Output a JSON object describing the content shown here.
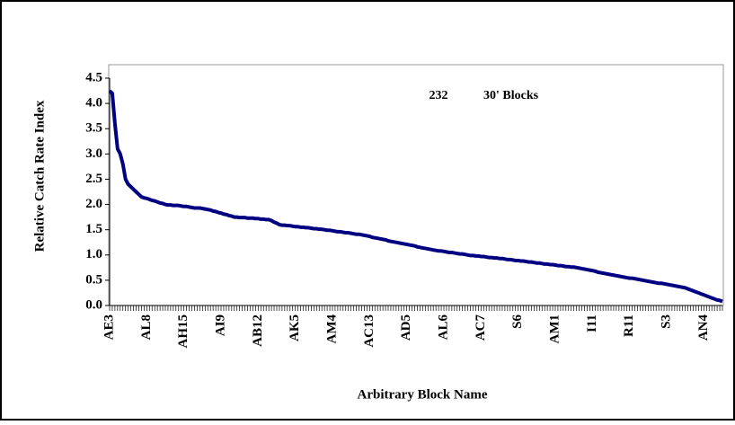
{
  "chart_data": {
    "type": "line",
    "x_label": "Arbitrary Block Name",
    "y_label": "Relative Catch Rate Index",
    "annotations": [
      "232",
      "30' Blocks"
    ],
    "color": "#000080",
    "ylim": [
      0,
      4.5
    ],
    "yticks": [
      {
        "value": 0,
        "label": "0.0"
      },
      0.5,
      {
        "value": 1,
        "label": "1.0"
      },
      1.5,
      {
        "value": 2,
        "label": "2.0"
      },
      2.5,
      {
        "value": 3,
        "label": "3.0"
      },
      3.5,
      {
        "value": 4,
        "label": "4.0"
      },
      4.5
    ],
    "categories": [
      "AE3",
      null,
      null,
      null,
      null,
      null,
      null,
      null,
      null,
      null,
      null,
      null,
      null,
      null,
      "AL8",
      null,
      null,
      null,
      null,
      null,
      null,
      null,
      null,
      null,
      null,
      null,
      null,
      null,
      "AH15",
      null,
      null,
      null,
      null,
      null,
      null,
      null,
      null,
      null,
      null,
      null,
      null,
      null,
      "AI9",
      null,
      null,
      null,
      null,
      null,
      null,
      null,
      null,
      null,
      null,
      null,
      null,
      null,
      "AB12",
      null,
      null,
      null,
      null,
      null,
      null,
      null,
      null,
      null,
      null,
      null,
      null,
      null,
      "AK5",
      null,
      null,
      null,
      null,
      null,
      null,
      null,
      null,
      null,
      null,
      null,
      null,
      null,
      "AM4",
      null,
      null,
      null,
      null,
      null,
      null,
      null,
      null,
      null,
      null,
      null,
      null,
      null,
      "AC13",
      null,
      null,
      null,
      null,
      null,
      null,
      null,
      null,
      null,
      null,
      null,
      null,
      null,
      "AD5",
      null,
      null,
      null,
      null,
      null,
      null,
      null,
      null,
      null,
      null,
      null,
      null,
      null,
      "AL6",
      null,
      null,
      null,
      null,
      null,
      null,
      null,
      null,
      null,
      null,
      null,
      null,
      null,
      "AC7",
      null,
      null,
      null,
      null,
      null,
      null,
      null,
      null,
      null,
      null,
      null,
      null,
      null,
      "S6",
      null,
      null,
      null,
      null,
      null,
      null,
      null,
      null,
      null,
      null,
      null,
      null,
      null,
      "AM1",
      null,
      null,
      null,
      null,
      null,
      null,
      null,
      null,
      null,
      null,
      null,
      null,
      null,
      "I11",
      null,
      null,
      null,
      null,
      null,
      null,
      null,
      null,
      null,
      null,
      null,
      null,
      null,
      "R11",
      null,
      null,
      null,
      null,
      null,
      null,
      null,
      null,
      null,
      null,
      null,
      null,
      null,
      "S3",
      null,
      null,
      null,
      null,
      null,
      null,
      null,
      null,
      null,
      null,
      null,
      null,
      null,
      "AN4",
      null,
      null,
      null,
      null,
      null,
      null,
      null
    ],
    "values": [
      4.25,
      4.2,
      3.6,
      3.1,
      3.0,
      2.8,
      2.5,
      2.4,
      2.35,
      2.3,
      2.25,
      2.2,
      2.15,
      2.13,
      2.12,
      2.1,
      2.08,
      2.07,
      2.05,
      2.03,
      2.02,
      2.0,
      1.99,
      1.99,
      1.98,
      1.98,
      1.98,
      1.97,
      1.96,
      1.96,
      1.95,
      1.94,
      1.93,
      1.93,
      1.93,
      1.92,
      1.91,
      1.9,
      1.89,
      1.87,
      1.86,
      1.84,
      1.83,
      1.81,
      1.8,
      1.78,
      1.77,
      1.75,
      1.75,
      1.74,
      1.74,
      1.74,
      1.73,
      1.73,
      1.73,
      1.72,
      1.72,
      1.71,
      1.71,
      1.7,
      1.7,
      1.68,
      1.65,
      1.63,
      1.6,
      1.59,
      1.59,
      1.58,
      1.58,
      1.57,
      1.56,
      1.56,
      1.55,
      1.55,
      1.54,
      1.54,
      1.53,
      1.52,
      1.52,
      1.51,
      1.51,
      1.5,
      1.49,
      1.49,
      1.48,
      1.47,
      1.46,
      1.46,
      1.45,
      1.44,
      1.44,
      1.43,
      1.42,
      1.41,
      1.41,
      1.4,
      1.39,
      1.38,
      1.37,
      1.35,
      1.34,
      1.33,
      1.32,
      1.31,
      1.3,
      1.28,
      1.27,
      1.26,
      1.25,
      1.24,
      1.23,
      1.22,
      1.21,
      1.2,
      1.19,
      1.18,
      1.16,
      1.15,
      1.14,
      1.13,
      1.12,
      1.11,
      1.1,
      1.09,
      1.08,
      1.08,
      1.07,
      1.06,
      1.05,
      1.05,
      1.04,
      1.03,
      1.02,
      1.02,
      1.01,
      1.0,
      0.99,
      0.99,
      0.98,
      0.98,
      0.97,
      0.97,
      0.96,
      0.95,
      0.95,
      0.94,
      0.94,
      0.93,
      0.93,
      0.92,
      0.91,
      0.91,
      0.9,
      0.89,
      0.89,
      0.88,
      0.88,
      0.87,
      0.86,
      0.86,
      0.85,
      0.84,
      0.84,
      0.83,
      0.82,
      0.82,
      0.81,
      0.81,
      0.8,
      0.79,
      0.79,
      0.78,
      0.77,
      0.77,
      0.76,
      0.76,
      0.75,
      0.74,
      0.73,
      0.72,
      0.71,
      0.7,
      0.69,
      0.68,
      0.66,
      0.65,
      0.64,
      0.63,
      0.62,
      0.61,
      0.6,
      0.59,
      0.58,
      0.57,
      0.56,
      0.55,
      0.54,
      0.54,
      0.53,
      0.52,
      0.51,
      0.5,
      0.49,
      0.48,
      0.47,
      0.46,
      0.45,
      0.44,
      0.44,
      0.43,
      0.42,
      0.41,
      0.4,
      0.39,
      0.38,
      0.37,
      0.36,
      0.35,
      0.33,
      0.31,
      0.29,
      0.27,
      0.25,
      0.23,
      0.21,
      0.19,
      0.17,
      0.15,
      0.13,
      0.11,
      0.1,
      0.08
    ]
  }
}
